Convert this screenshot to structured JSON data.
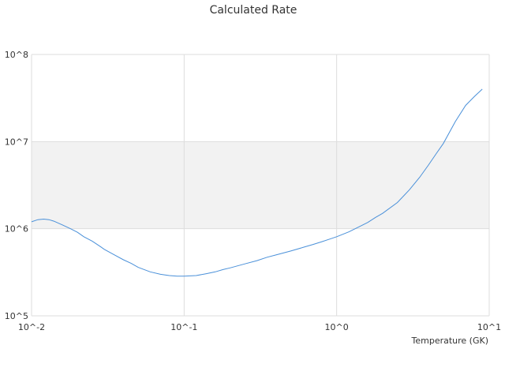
{
  "chart_data": {
    "type": "line",
    "title": "Calculated Rate",
    "xlabel": "Temperature (GK)",
    "ylabel": "",
    "x_scale": "log",
    "y_scale": "log",
    "xlim": [
      0.01,
      10
    ],
    "ylim": [
      100000,
      100000000
    ],
    "x_ticks": [
      "10^-2",
      "10^-1",
      "10^0",
      "10^1"
    ],
    "y_ticks": [
      "10^5",
      "10^6",
      "10^7",
      "10^8"
    ],
    "grid": true,
    "band": {
      "y_from": 1000000,
      "y_to": 10000000,
      "color": "#f2f2f2"
    },
    "colors": {
      "line": "#4a90d9",
      "grid": "#dddddd",
      "band": "#f2f2f2"
    },
    "series": [
      {
        "x": [
          0.01,
          0.011,
          0.012,
          0.013,
          0.014,
          0.016,
          0.018,
          0.02,
          0.022,
          0.025,
          0.028,
          0.03,
          0.035,
          0.04,
          0.045,
          0.05,
          0.06,
          0.07,
          0.08,
          0.09,
          0.1,
          0.12,
          0.14,
          0.16,
          0.18,
          0.2,
          0.25,
          0.3,
          0.35,
          0.4,
          0.5,
          0.6,
          0.7,
          0.8,
          0.9,
          1.0,
          1.2,
          1.4,
          1.6,
          1.8,
          2.0,
          2.5,
          3.0,
          3.5,
          4.0,
          4.5,
          5.0,
          6.0,
          7.0,
          8.0,
          9.0
        ],
        "y": [
          1200000,
          1270000,
          1290000,
          1270000,
          1220000,
          1100000,
          1000000,
          910000,
          810000,
          720000,
          630000,
          580000,
          500000,
          440000,
          400000,
          360000,
          320000,
          300000,
          290000,
          285000,
          285000,
          290000,
          305000,
          320000,
          340000,
          355000,
          395000,
          430000,
          470000,
          500000,
          555000,
          610000,
          660000,
          710000,
          760000,
          810000,
          920000,
          1050000,
          1180000,
          1350000,
          1500000,
          2000000,
          2800000,
          3900000,
          5400000,
          7300000,
          9500000,
          17000000,
          26000000,
          33000000,
          40000000
        ]
      }
    ]
  }
}
